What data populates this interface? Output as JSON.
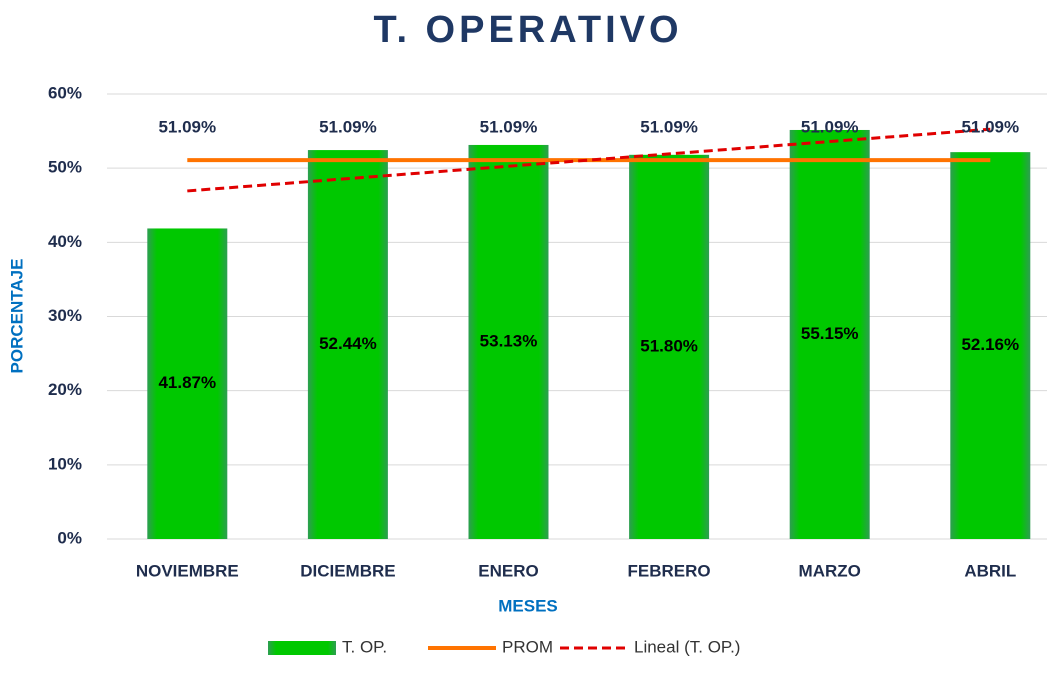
{
  "chart_data": {
    "type": "bar",
    "title": "T. OPERATIVO",
    "x_label": "MESES",
    "y_label": "PORCENTAJE",
    "categories": [
      "NOVIEMBRE",
      "DICIEMBRE",
      "ENERO",
      "FEBRERO",
      "MARZO",
      "ABRIL"
    ],
    "series": [
      {
        "name": "T. OP.",
        "type": "bar",
        "color": "#00c800",
        "values": [
          41.87,
          52.44,
          53.13,
          51.8,
          55.15,
          52.16
        ],
        "value_labels": [
          "41.87%",
          "52.44%",
          "53.13%",
          "51.80%",
          "55.15%",
          "52.16%"
        ]
      },
      {
        "name": "PROM",
        "type": "line",
        "color": "#ff7300",
        "values": [
          51.09,
          51.09,
          51.09,
          51.09,
          51.09,
          51.09
        ],
        "value_labels": [
          "51.09%",
          "51.09%",
          "51.09%",
          "51.09%",
          "51.09%",
          "51.09%"
        ]
      },
      {
        "name": "Lineal (T. OP.)",
        "type": "trend",
        "color": "#e00000",
        "values": [
          46.93,
          48.59,
          50.26,
          51.92,
          53.59,
          55.25
        ]
      }
    ],
    "ylim": [
      0,
      60
    ],
    "yticks": [
      {
        "value": 0,
        "label": "0%"
      },
      {
        "value": 10,
        "label": "10%"
      },
      {
        "value": 20,
        "label": "20%"
      },
      {
        "value": 30,
        "label": "30%"
      },
      {
        "value": 40,
        "label": "40%"
      },
      {
        "value": 50,
        "label": "50%"
      },
      {
        "value": 60,
        "label": "60%"
      }
    ],
    "grid": true,
    "legend": "bottom"
  }
}
